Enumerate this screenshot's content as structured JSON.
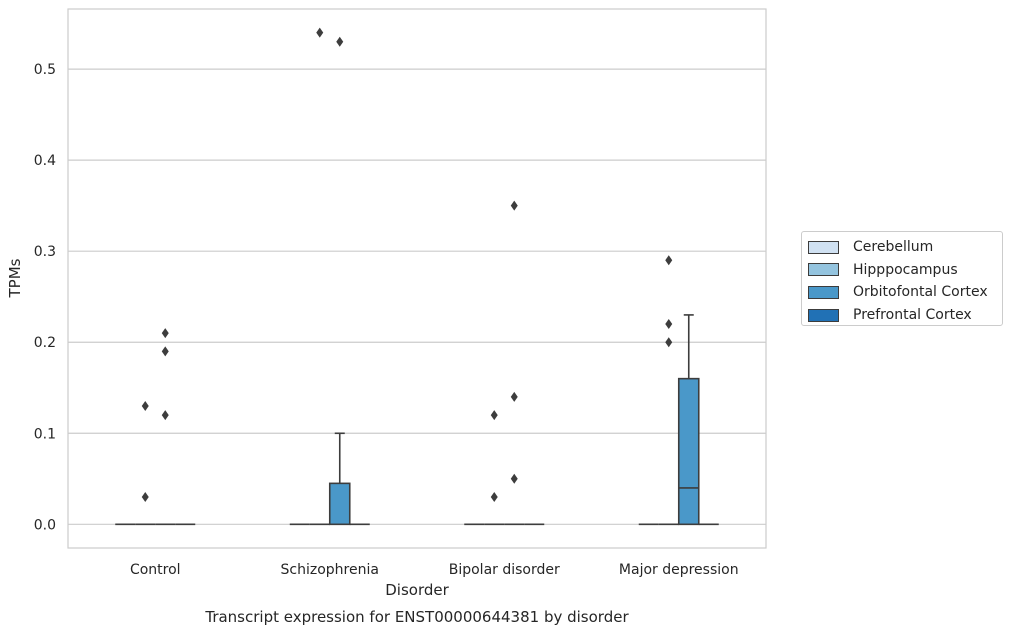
{
  "chart_data": {
    "type": "boxplot",
    "caption": "Transcript expression for ENST00000644381 by disorder",
    "xlabel": "Disorder",
    "ylabel": "TPMs",
    "ylim": [
      -0.026,
      0.566
    ],
    "yticks": [
      0.0,
      0.1,
      0.2,
      0.3,
      0.4,
      0.5
    ],
    "ytick_labels": [
      "0.0",
      "0.1",
      "0.2",
      "0.3",
      "0.4",
      "0.5"
    ],
    "grid": "horizontal",
    "legend_placement": "right",
    "categories": [
      "Control",
      "Schizophrenia",
      "Bipolar disorder",
      "Major depression"
    ],
    "series": [
      {
        "name": "Cerebellum",
        "color": "#d0e1f2",
        "boxes": [
          {
            "q1": 0,
            "median": 0,
            "q3": 0,
            "whislo": 0,
            "whishi": 0,
            "fliers": []
          },
          {
            "q1": 0,
            "median": 0,
            "q3": 0,
            "whislo": 0,
            "whishi": 0,
            "fliers": []
          },
          {
            "q1": 0,
            "median": 0,
            "q3": 0,
            "whislo": 0,
            "whishi": 0,
            "fliers": []
          },
          {
            "q1": 0,
            "median": 0,
            "q3": 0,
            "whislo": 0,
            "whishi": 0,
            "fliers": []
          }
        ]
      },
      {
        "name": "Hipppocampus",
        "color": "#94c4df",
        "boxes": [
          {
            "q1": 0,
            "median": 0,
            "q3": 0,
            "whislo": 0,
            "whishi": 0,
            "fliers": [
              0.03,
              0.13
            ]
          },
          {
            "q1": 0,
            "median": 0,
            "q3": 0,
            "whislo": 0,
            "whishi": 0,
            "fliers": [
              0.54
            ]
          },
          {
            "q1": 0,
            "median": 0,
            "q3": 0,
            "whislo": 0,
            "whishi": 0,
            "fliers": [
              0.03,
              0.12
            ]
          },
          {
            "q1": 0,
            "median": 0,
            "q3": 0,
            "whislo": 0,
            "whishi": 0,
            "fliers": [
              0.2,
              0.22,
              0.29
            ]
          }
        ]
      },
      {
        "name": "Orbitofontal Cortex",
        "color": "#4a98c9",
        "boxes": [
          {
            "q1": 0,
            "median": 0,
            "q3": 0,
            "whislo": 0,
            "whishi": 0,
            "fliers": [
              0.12,
              0.19,
              0.21
            ]
          },
          {
            "q1": 0,
            "median": 0,
            "q3": 0.045,
            "whislo": 0,
            "whishi": 0.1,
            "fliers": [
              0.53
            ]
          },
          {
            "q1": 0,
            "median": 0,
            "q3": 0,
            "whislo": 0,
            "whishi": 0,
            "fliers": [
              0.05,
              0.14,
              0.35
            ]
          },
          {
            "q1": 0,
            "median": 0.04,
            "q3": 0.16,
            "whislo": 0,
            "whishi": 0.23,
            "fliers": []
          }
        ]
      },
      {
        "name": "Prefrontal Cortex",
        "color": "#2171b5",
        "boxes": [
          {
            "q1": 0,
            "median": 0,
            "q3": 0,
            "whislo": 0,
            "whishi": 0,
            "fliers": []
          },
          {
            "q1": 0,
            "median": 0,
            "q3": 0,
            "whislo": 0,
            "whishi": 0,
            "fliers": []
          },
          {
            "q1": 0,
            "median": 0,
            "q3": 0,
            "whislo": 0,
            "whishi": 0,
            "fliers": []
          },
          {
            "q1": 0,
            "median": 0,
            "q3": 0,
            "whislo": 0,
            "whishi": 0,
            "fliers": []
          }
        ]
      }
    ]
  }
}
